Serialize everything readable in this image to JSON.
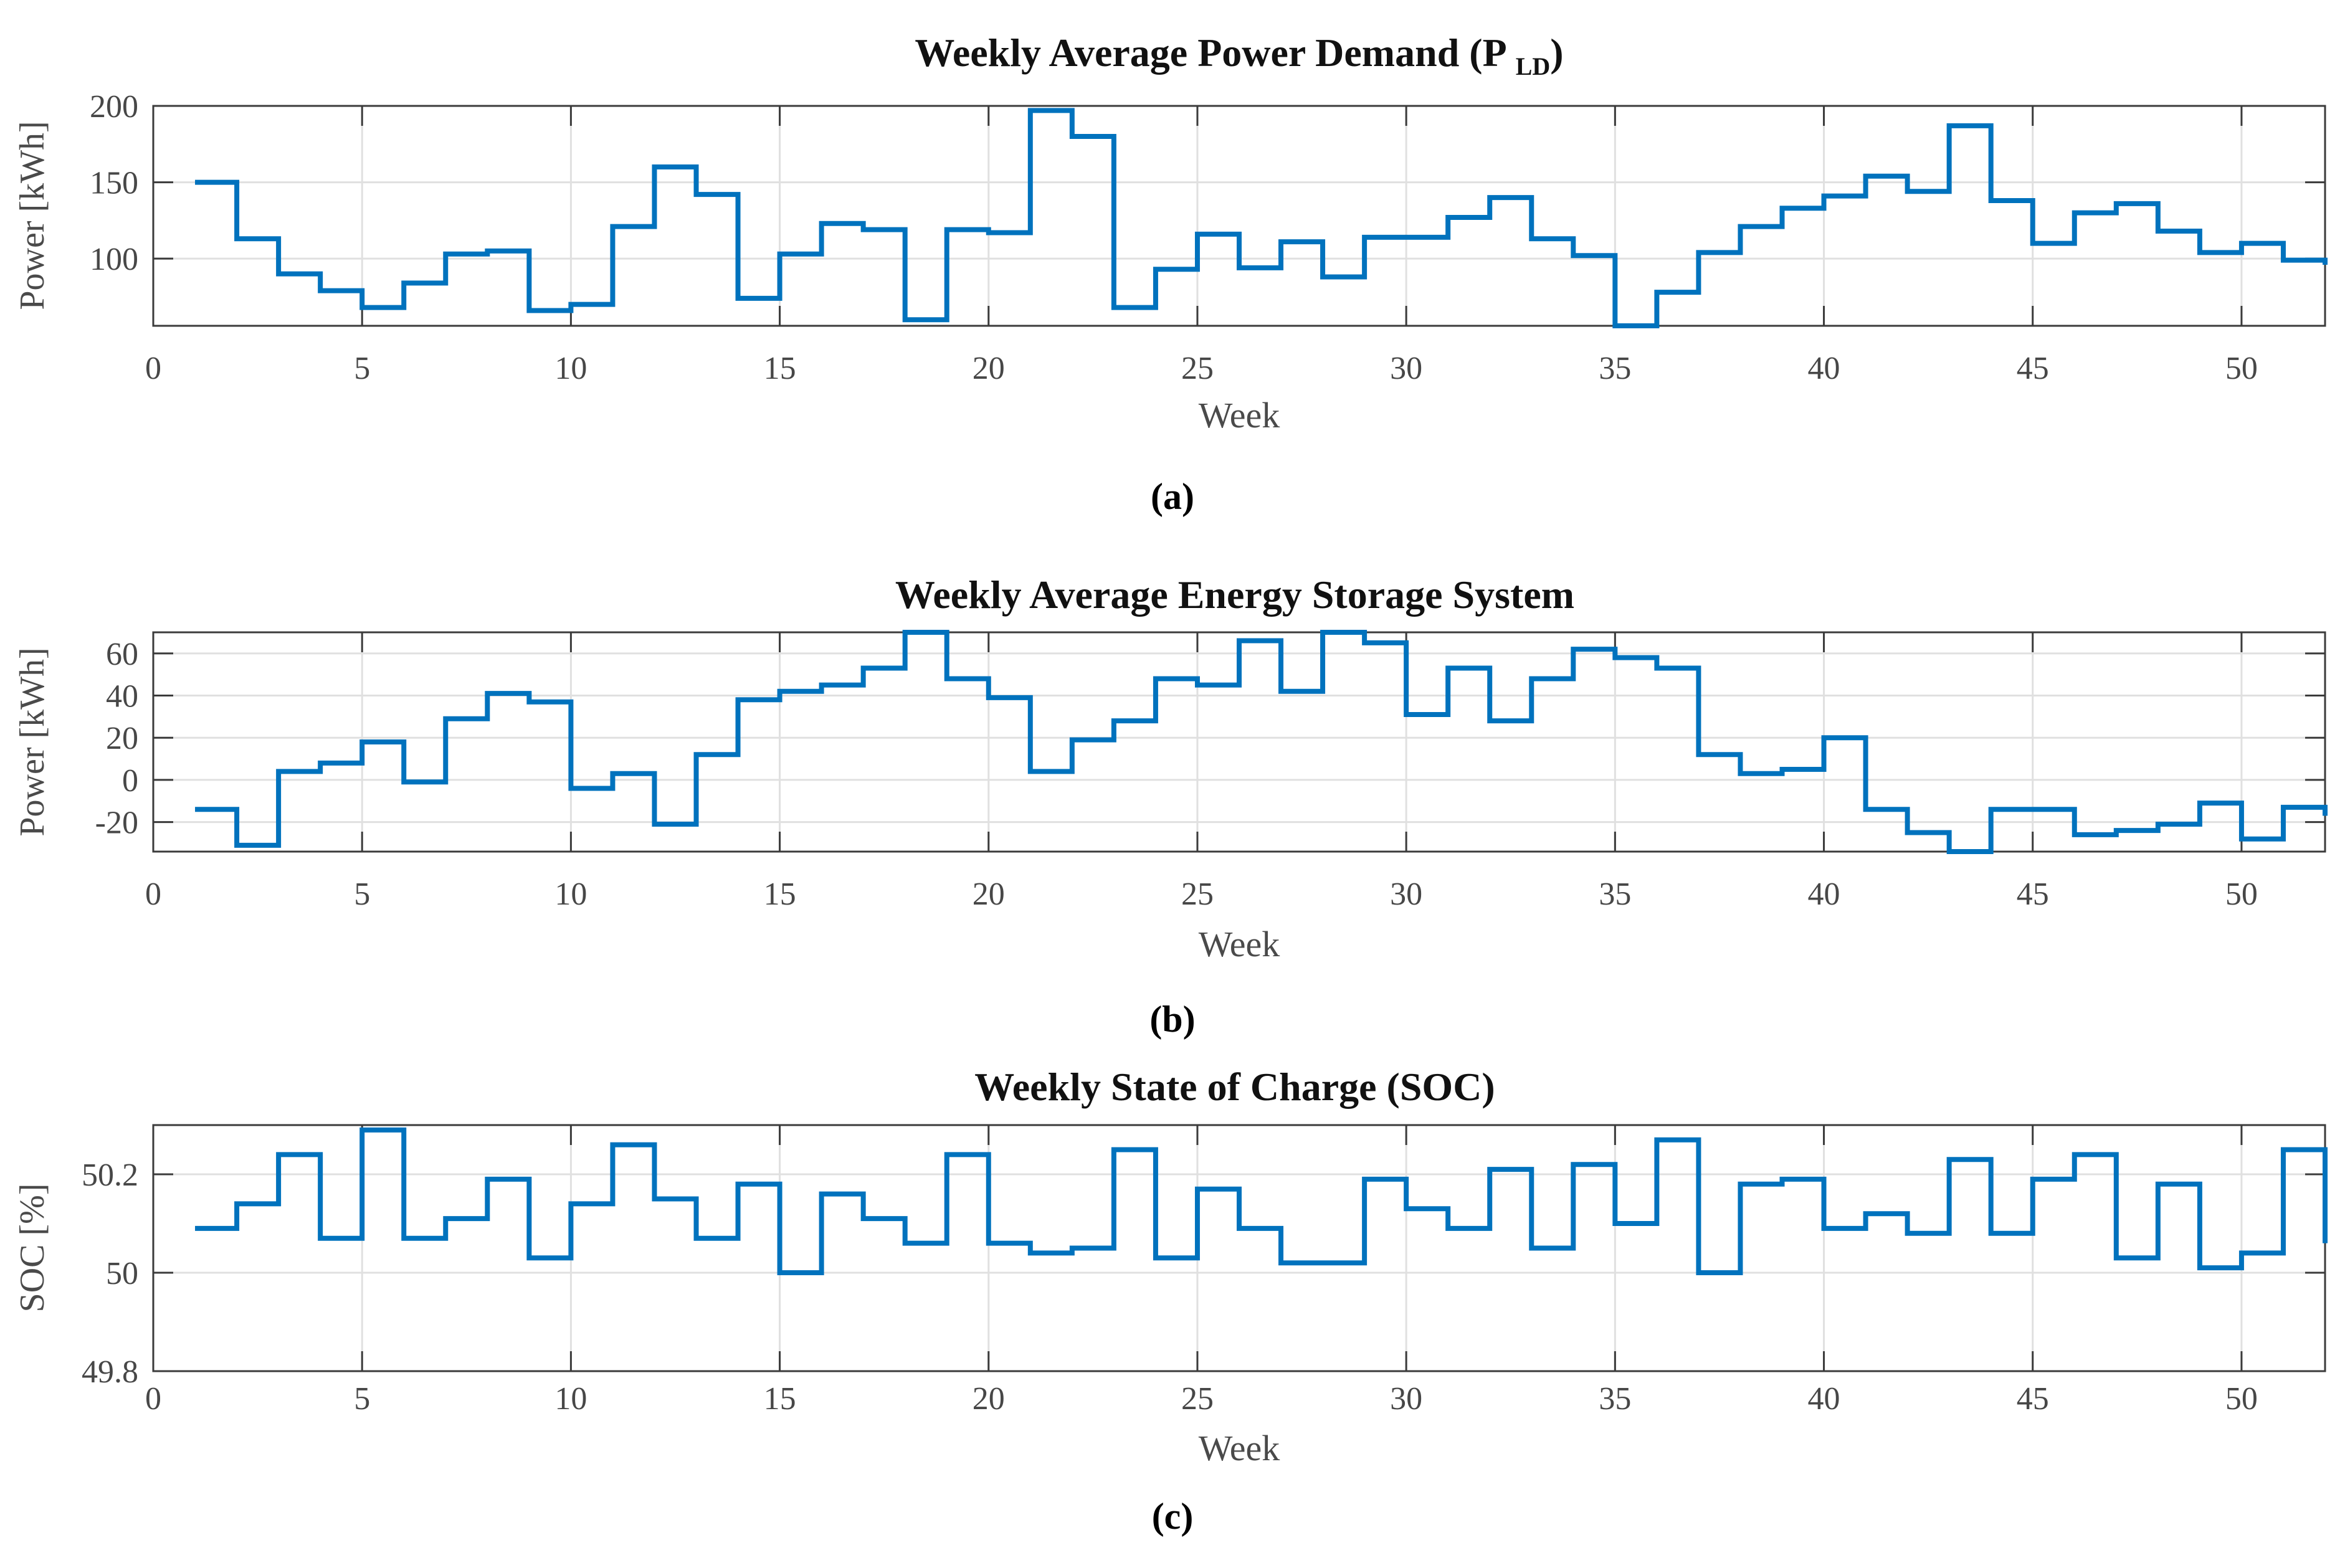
{
  "weeks": [
    1,
    2,
    3,
    4,
    5,
    6,
    7,
    8,
    9,
    10,
    11,
    12,
    13,
    14,
    15,
    16,
    17,
    18,
    19,
    20,
    21,
    22,
    23,
    24,
    25,
    26,
    27,
    28,
    29,
    30,
    31,
    32,
    33,
    34,
    35,
    36,
    37,
    38,
    39,
    40,
    41,
    42,
    43,
    44,
    45,
    46,
    47,
    48,
    49,
    50,
    51,
    52
  ],
  "style": {
    "line_color": "#0072BD",
    "grid_color": "#E0E0E0",
    "axis_color": "#3B3B3B",
    "tick_label_color": "#474747",
    "axis_label_color": "#4A4A4A",
    "title_color": "#111111",
    "sublabel_color": "#000000",
    "background": "#FFFFFF"
  },
  "chart_data": [
    {
      "id": "a",
      "type": "line",
      "line_style": "stairs",
      "title": "Weekly Average Power Demand (P",
      "title_sub": "LD",
      "title_suffix": ")",
      "xlabel": "Week",
      "ylabel": "Power [kWh]",
      "sublabel": "(a)",
      "xlim": [
        0,
        52
      ],
      "ylim": [
        56,
        200
      ],
      "xticks": [
        0,
        5,
        10,
        15,
        20,
        25,
        30,
        35,
        40,
        45,
        50
      ],
      "xticklabels": [
        "0",
        "5",
        "10",
        "15",
        "20",
        "25",
        "30",
        "35",
        "40",
        "45",
        "50"
      ],
      "yticks": [
        100,
        150,
        200
      ],
      "yticklabels": [
        "100",
        "150",
        "200"
      ],
      "grid": true,
      "line_color": "#0072BD",
      "values": [
        150,
        113,
        90,
        79,
        68,
        84,
        103,
        105,
        66,
        70,
        121,
        160,
        142,
        74,
        103,
        123,
        119,
        60,
        119,
        117,
        197,
        180,
        68,
        93,
        116,
        94,
        111,
        88,
        114,
        114,
        127,
        140,
        113,
        102,
        56,
        78,
        104,
        121,
        133,
        141,
        154,
        144,
        187,
        138,
        110,
        130,
        136,
        118,
        104,
        110,
        99,
        96
      ]
    },
    {
      "id": "b",
      "type": "line",
      "line_style": "stairs",
      "title": "Weekly Average Energy Storage System",
      "title_sub": "",
      "title_suffix": "",
      "xlabel": "Week",
      "ylabel": "Power [kWh]",
      "sublabel": "(b)",
      "xlim": [
        0,
        52
      ],
      "ylim": [
        -34,
        70
      ],
      "xticks": [
        0,
        5,
        10,
        15,
        20,
        25,
        30,
        35,
        40,
        45,
        50
      ],
      "xticklabels": [
        "0",
        "5",
        "10",
        "15",
        "20",
        "25",
        "30",
        "35",
        "40",
        "45",
        "50"
      ],
      "yticks": [
        -20,
        0,
        20,
        40,
        60
      ],
      "yticklabels": [
        "-20",
        "0",
        "20",
        "40",
        "60"
      ],
      "grid": true,
      "line_color": "#0072BD",
      "values": [
        -14,
        -31,
        4,
        8,
        18,
        -1,
        29,
        41,
        37,
        -4,
        3,
        -21,
        12,
        38,
        42,
        45,
        53,
        70,
        48,
        39,
        4,
        19,
        28,
        48,
        45,
        66,
        42,
        70,
        65,
        31,
        53,
        28,
        48,
        62,
        58,
        53,
        12,
        3,
        5,
        20,
        -14,
        -25,
        -34,
        -14,
        -14,
        -26,
        -24,
        -21,
        -11,
        -28,
        -13,
        -17
      ]
    },
    {
      "id": "c",
      "type": "line",
      "line_style": "stairs",
      "title": "Weekly State of Charge (SOC)",
      "title_sub": "",
      "title_suffix": "",
      "xlabel": "Week",
      "ylabel": "SOC [%]",
      "sublabel": "(c)",
      "xlim": [
        0,
        52
      ],
      "ylim": [
        49.8,
        50.3
      ],
      "xticks": [
        0,
        5,
        10,
        15,
        20,
        25,
        30,
        35,
        40,
        45,
        50
      ],
      "xticklabels": [
        "0",
        "5",
        "10",
        "15",
        "20",
        "25",
        "30",
        "35",
        "40",
        "45",
        "50"
      ],
      "yticks": [
        49.8,
        50,
        50.2
      ],
      "yticklabels": [
        "49.8",
        "50",
        "50.2"
      ],
      "grid": true,
      "line_color": "#0072BD",
      "values": [
        50.09,
        50.14,
        50.24,
        50.07,
        50.29,
        50.07,
        50.11,
        50.19,
        50.03,
        50.14,
        50.26,
        50.15,
        50.07,
        50.18,
        50.0,
        50.16,
        50.11,
        50.06,
        50.24,
        50.06,
        50.04,
        50.05,
        50.25,
        50.03,
        50.17,
        50.09,
        50.02,
        50.02,
        50.19,
        50.13,
        50.09,
        50.21,
        50.05,
        50.22,
        50.1,
        50.27,
        50.0,
        50.18,
        50.19,
        50.09,
        50.12,
        50.08,
        50.23,
        50.08,
        50.19,
        50.24,
        50.03,
        50.18,
        50.01,
        50.04,
        50.25,
        50.06
      ]
    }
  ]
}
